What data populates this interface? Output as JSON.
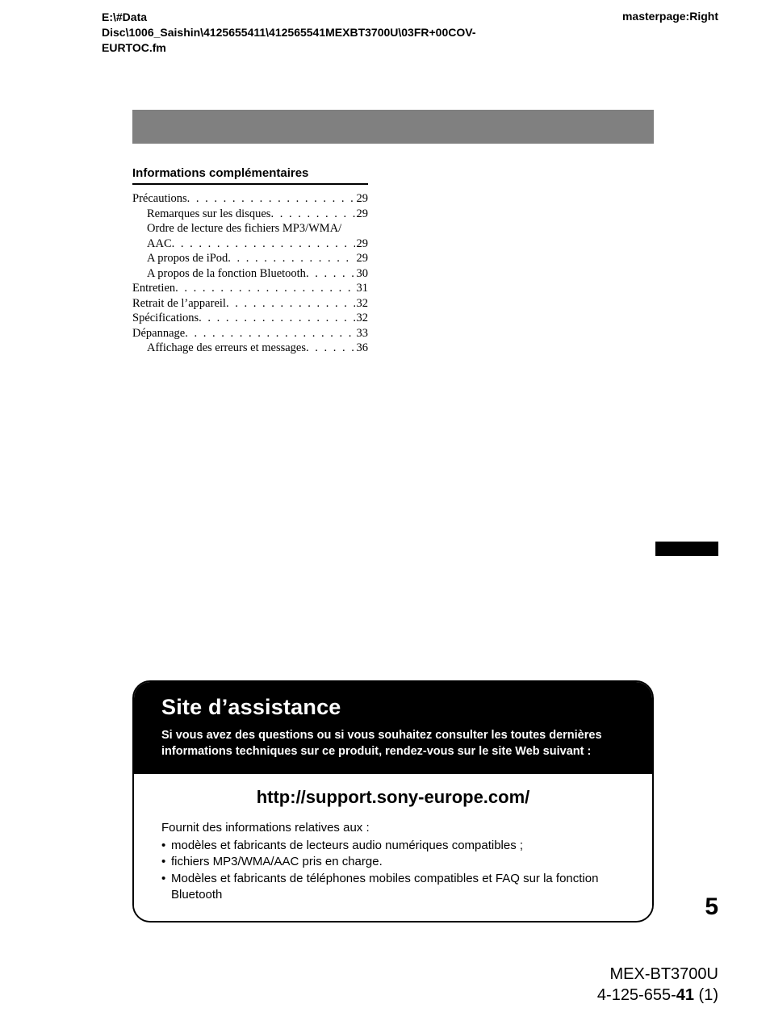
{
  "header": {
    "path": "E:\\#Data Disc\\1006_Saishin\\4125655411\\412565541MEXBT3700U\\03FR+00COV-EURTOC.fm",
    "masterpage": "masterpage:Right"
  },
  "section_heading": "Informations complémentaires",
  "toc": [
    {
      "label": "Précautions",
      "page": "29",
      "sub": false,
      "wrap": false
    },
    {
      "label": "Remarques sur les disques",
      "page": "29",
      "sub": true,
      "wrap": false
    },
    {
      "label": "Ordre de lecture des fichiers MP3/WMA/",
      "label2": "AAC",
      "page": "29",
      "sub": true,
      "wrap": true
    },
    {
      "label": "A propos de iPod",
      "page": "29",
      "sub": true,
      "wrap": false
    },
    {
      "label": "A propos de la fonction Bluetooth",
      "page": "30",
      "sub": true,
      "wrap": false
    },
    {
      "label": "Entretien",
      "page": "31",
      "sub": false,
      "wrap": false
    },
    {
      "label": "Retrait de l’appareil",
      "page": "32",
      "sub": false,
      "wrap": false
    },
    {
      "label": "Spécifications",
      "page": "32",
      "sub": false,
      "wrap": false
    },
    {
      "label": "Dépannage",
      "page": "33",
      "sub": false,
      "wrap": false
    },
    {
      "label": "Affichage des erreurs et messages",
      "page": "36",
      "sub": true,
      "wrap": false
    }
  ],
  "support": {
    "title": "Site d’assistance",
    "subtitle": "Si vous avez des questions ou si vous souhaitez consulter les toutes dernières informations techniques sur ce produit, rendez-vous sur le site Web suivant :",
    "url": "http://support.sony-europe.com/",
    "lead": "Fournit des informations relatives aux :",
    "bullets": [
      "modèles et fabricants de lecteurs audio numériques compatibles ;",
      "fichiers MP3/WMA/AAC pris en charge.",
      "Modèles et fabricants de téléphones mobiles compatibles et FAQ sur la fonction Bluetooth"
    ]
  },
  "page_number": "5",
  "footer": {
    "model": "MEX-BT3700U",
    "partno_prefix": "4-125-655-",
    "partno_bold": "41",
    "partno_suffix": " (1)"
  }
}
